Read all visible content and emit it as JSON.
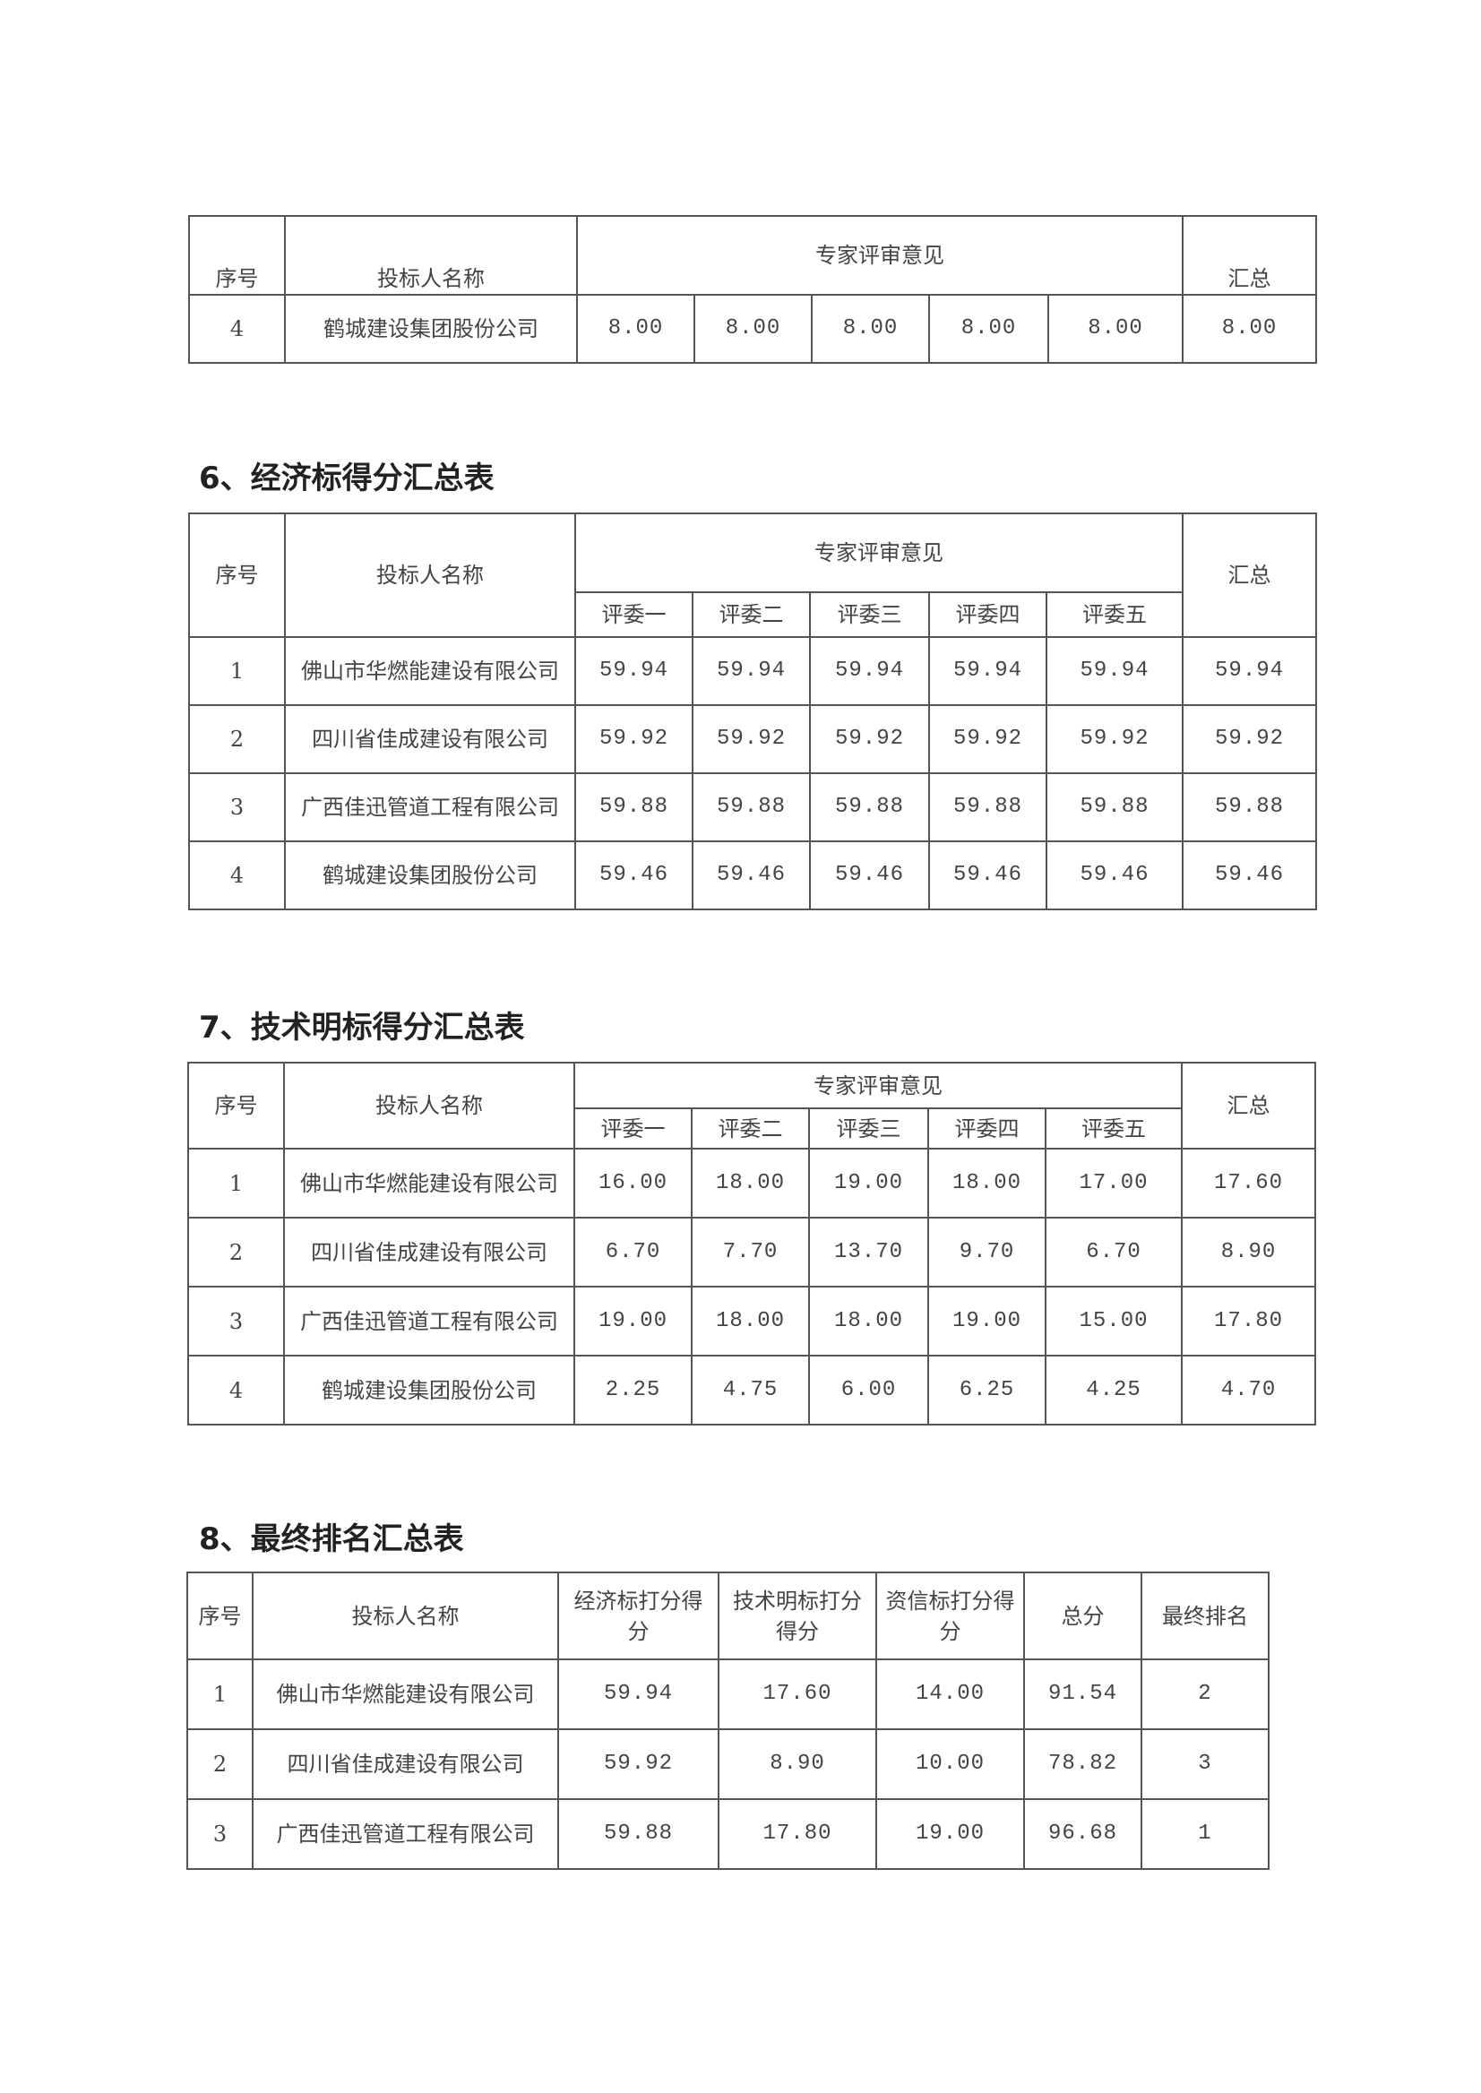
{
  "table5_cont": {
    "headers": {
      "index": "序号",
      "name": "投标人名称",
      "experts": "专家评审意见",
      "total": "汇总"
    },
    "rows": [
      {
        "index": "4",
        "name": "鹤城建设集团股份公司",
        "scores": [
          "8.00",
          "8.00",
          "8.00",
          "8.00",
          "8.00"
        ],
        "total": "8.00"
      }
    ]
  },
  "table6": {
    "title": "6、经济标得分汇总表",
    "headers": {
      "index": "序号",
      "name": "投标人名称",
      "experts": "专家评审意见",
      "total": "汇总",
      "judges": [
        "评委一",
        "评委二",
        "评委三",
        "评委四",
        "评委五"
      ]
    },
    "rows": [
      {
        "index": "1",
        "name": "佛山市华燃能建设有限公司",
        "scores": [
          "59.94",
          "59.94",
          "59.94",
          "59.94",
          "59.94"
        ],
        "total": "59.94"
      },
      {
        "index": "2",
        "name": "四川省佳成建设有限公司",
        "scores": [
          "59.92",
          "59.92",
          "59.92",
          "59.92",
          "59.92"
        ],
        "total": "59.92"
      },
      {
        "index": "3",
        "name": "广西佳迅管道工程有限公司",
        "scores": [
          "59.88",
          "59.88",
          "59.88",
          "59.88",
          "59.88"
        ],
        "total": "59.88"
      },
      {
        "index": "4",
        "name": "鹤城建设集团股份公司",
        "scores": [
          "59.46",
          "59.46",
          "59.46",
          "59.46",
          "59.46"
        ],
        "total": "59.46"
      }
    ]
  },
  "table7": {
    "title": "7、技术明标得分汇总表",
    "headers": {
      "index": "序号",
      "name": "投标人名称",
      "experts": "专家评审意见",
      "total": "汇总",
      "judges": [
        "评委一",
        "评委二",
        "评委三",
        "评委四",
        "评委五"
      ]
    },
    "rows": [
      {
        "index": "1",
        "name": "佛山市华燃能建设有限公司",
        "scores": [
          "16.00",
          "18.00",
          "19.00",
          "18.00",
          "17.00"
        ],
        "total": "17.60"
      },
      {
        "index": "2",
        "name": "四川省佳成建设有限公司",
        "scores": [
          "6.70",
          "7.70",
          "13.70",
          "9.70",
          "6.70"
        ],
        "total": "8.90"
      },
      {
        "index": "3",
        "name": "广西佳迅管道工程有限公司",
        "scores": [
          "19.00",
          "18.00",
          "18.00",
          "19.00",
          "15.00"
        ],
        "total": "17.80"
      },
      {
        "index": "4",
        "name": "鹤城建设集团股份公司",
        "scores": [
          "2.25",
          "4.75",
          "6.00",
          "6.25",
          "4.25"
        ],
        "total": "4.70"
      }
    ]
  },
  "table8": {
    "title": "8、最终排名汇总表",
    "headers": [
      "序号",
      "投标人名称",
      "经济标打分得分",
      "技术明标打分得分",
      "资信标打分得分",
      "总分",
      "最终排名"
    ],
    "rows": [
      [
        "1",
        "佛山市华燃能建设有限公司",
        "59.94",
        "17.60",
        "14.00",
        "91.54",
        "2"
      ],
      [
        "2",
        "四川省佳成建设有限公司",
        "59.92",
        "8.90",
        "10.00",
        "78.82",
        "3"
      ],
      [
        "3",
        "广西佳迅管道工程有限公司",
        "59.88",
        "17.80",
        "19.00",
        "96.68",
        "1"
      ]
    ]
  }
}
